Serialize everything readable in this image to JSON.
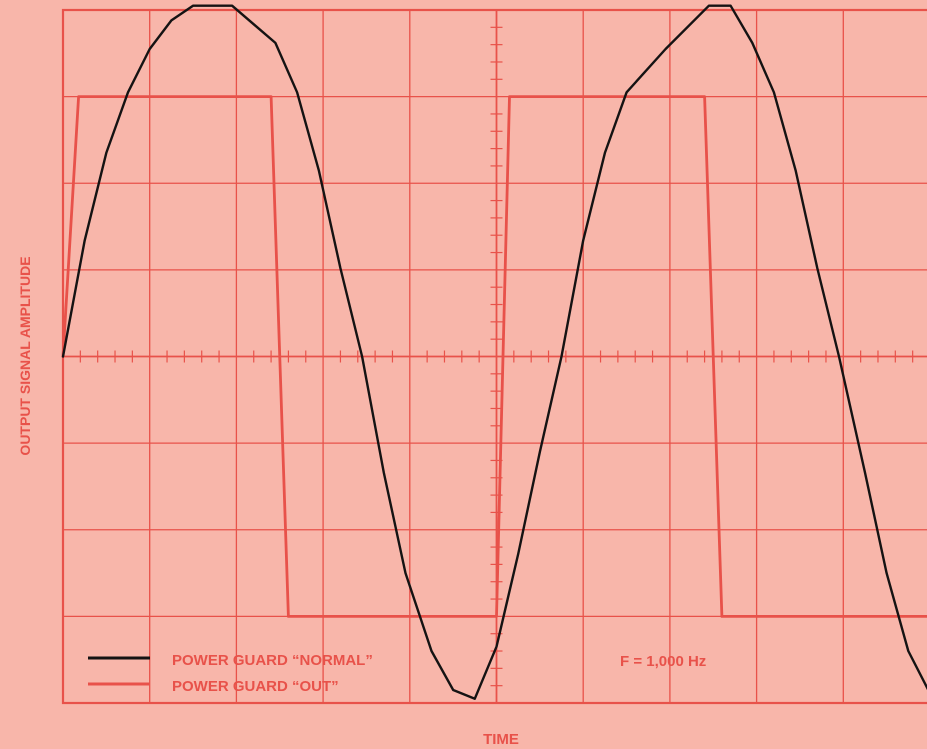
{
  "chart_data": {
    "type": "line",
    "title": "",
    "xlabel": "TIME",
    "ylabel": "OUTPUT SIGNAL AMPLITUDE",
    "annotation": "F = 1,000 Hz",
    "grid": true,
    "legend_position": "bottom-left",
    "x_divisions": 10,
    "y_divisions": 8,
    "xlim": [
      0,
      10
    ],
    "ylim": [
      -4,
      4
    ],
    "series": [
      {
        "name": "POWER GUARD “NORMAL”",
        "color": "#151313",
        "x": [
          0.0,
          0.25,
          0.5,
          0.75,
          1.0,
          1.25,
          1.5,
          1.95,
          2.45,
          2.7,
          2.95,
          3.2,
          3.45,
          3.7,
          3.95,
          4.25,
          4.5,
          4.75,
          5.0,
          5.25,
          5.5,
          5.75,
          6.0,
          6.25,
          6.5,
          6.95,
          7.45,
          7.7,
          7.95,
          8.2,
          8.45,
          8.7,
          8.95,
          9.25,
          9.5,
          9.75,
          9.98
        ],
        "y": [
          0.0,
          1.34,
          2.35,
          3.05,
          3.55,
          3.88,
          4.05,
          4.05,
          3.62,
          3.05,
          2.15,
          1.02,
          0.0,
          -1.34,
          -2.5,
          -3.4,
          -3.85,
          -3.95,
          -3.35,
          -2.28,
          -1.1,
          0.0,
          1.34,
          2.35,
          3.05,
          3.55,
          4.05,
          4.05,
          3.62,
          3.05,
          2.15,
          1.02,
          0.0,
          -1.34,
          -2.5,
          -3.4,
          -3.85
        ]
      },
      {
        "name": "POWER GUARD “OUT”",
        "color": "#e8524a",
        "x": [
          0.0,
          0.18,
          2.4,
          2.6,
          5.0,
          5.15,
          7.4,
          7.6,
          9.98
        ],
        "y": [
          0.0,
          3.0,
          3.0,
          -3.0,
          -3.0,
          3.0,
          3.0,
          -3.0,
          -3.0
        ]
      }
    ]
  }
}
